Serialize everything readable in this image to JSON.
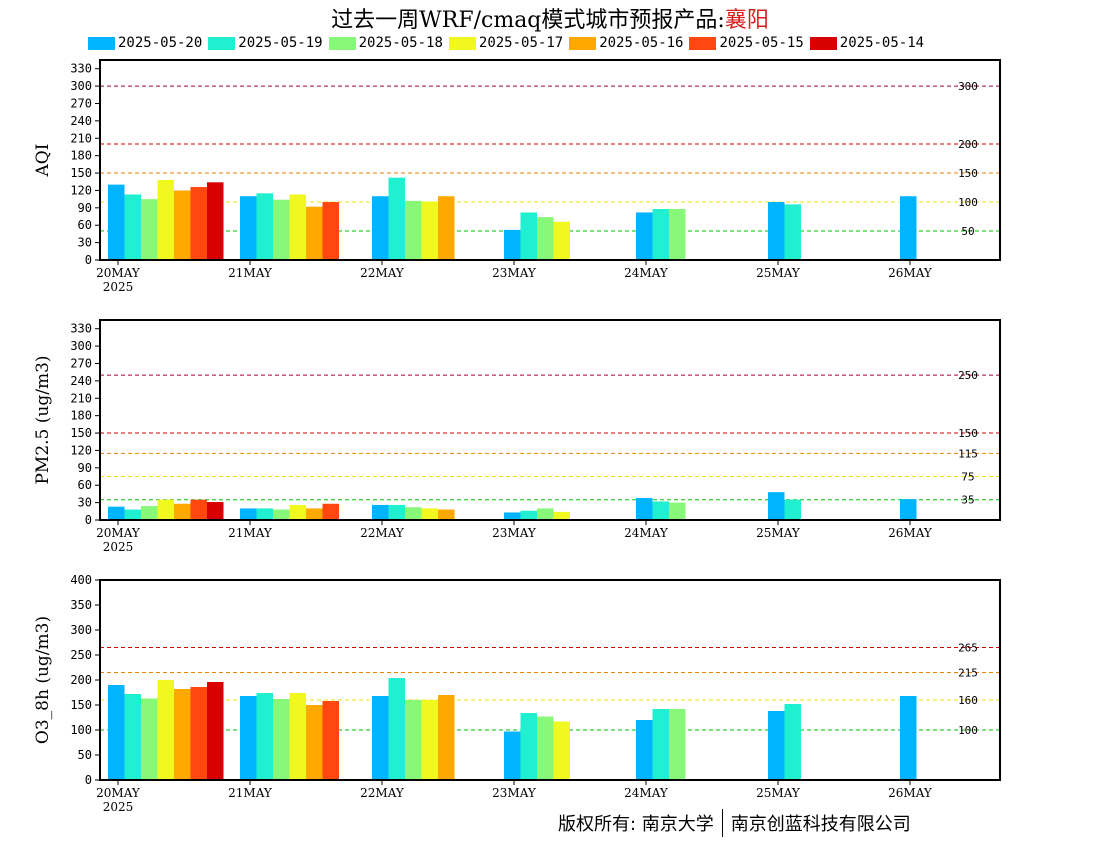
{
  "title": {
    "prefix": "过去一周WRF/cmaq模式城市预报产品:",
    "city": "襄阳",
    "city_color": "#d62020"
  },
  "legend": [
    {
      "label": "2025-05-20",
      "color": "#00b4ff"
    },
    {
      "label": "2025-05-19",
      "color": "#20f0d0"
    },
    {
      "label": "2025-05-18",
      "color": "#88f878"
    },
    {
      "label": "2025-05-17",
      "color": "#f0f820"
    },
    {
      "label": "2025-05-16",
      "color": "#ffa800"
    },
    {
      "label": "2025-05-15",
      "color": "#ff4810"
    },
    {
      "label": "2025-05-14",
      "color": "#d80000"
    }
  ],
  "chart_data": [
    {
      "type": "bar",
      "ylabel": "AQI",
      "ylim": [
        0,
        345
      ],
      "yticks": [
        0,
        30,
        60,
        90,
        120,
        150,
        180,
        210,
        240,
        270,
        300,
        330
      ],
      "categories": [
        "20MAY",
        "21MAY",
        "22MAY",
        "23MAY",
        "24MAY",
        "25MAY",
        "26MAY"
      ],
      "year_label": "2025",
      "thresholds": [
        {
          "value": 300,
          "label": "300",
          "color": "#a0003c"
        },
        {
          "value": 200,
          "label": "200",
          "color": "#d00000"
        },
        {
          "value": 150,
          "label": "150",
          "color": "#f08000"
        },
        {
          "value": 100,
          "label": "100",
          "color": "#f0e000"
        },
        {
          "value": 50,
          "label": "50",
          "color": "#00c000"
        }
      ],
      "series_values": [
        [
          130,
          110,
          110,
          52,
          82,
          100,
          110
        ],
        [
          113,
          115,
          142,
          82,
          88,
          96,
          null
        ],
        [
          105,
          104,
          102,
          74,
          88,
          null,
          null
        ],
        [
          138,
          113,
          101,
          66,
          null,
          null,
          null
        ],
        [
          120,
          92,
          110,
          null,
          null,
          null,
          null
        ],
        [
          126,
          100,
          null,
          null,
          null,
          null,
          null
        ],
        [
          134,
          null,
          null,
          null,
          null,
          null,
          null
        ]
      ]
    },
    {
      "type": "bar",
      "ylabel": "PM2.5 (ug/m3)",
      "ylim": [
        0,
        345
      ],
      "yticks": [
        0,
        30,
        60,
        90,
        120,
        150,
        180,
        210,
        240,
        270,
        300,
        330
      ],
      "categories": [
        "20MAY",
        "21MAY",
        "22MAY",
        "23MAY",
        "24MAY",
        "25MAY",
        "26MAY"
      ],
      "year_label": "2025",
      "thresholds": [
        {
          "value": 250,
          "label": "250",
          "color": "#a0003c"
        },
        {
          "value": 150,
          "label": "150",
          "color": "#d00000"
        },
        {
          "value": 115,
          "label": "115",
          "color": "#f08000"
        },
        {
          "value": 75,
          "label": "75",
          "color": "#f0e000"
        },
        {
          "value": 35,
          "label": "35",
          "color": "#00c000"
        }
      ],
      "series_values": [
        [
          23,
          20,
          26,
          13,
          38,
          48,
          36
        ],
        [
          18,
          20,
          26,
          16,
          32,
          35,
          null
        ],
        [
          24,
          18,
          22,
          20,
          30,
          null,
          null
        ],
        [
          35,
          26,
          20,
          14,
          null,
          null,
          null
        ],
        [
          28,
          20,
          18,
          null,
          null,
          null,
          null
        ],
        [
          35,
          28,
          null,
          null,
          null,
          null,
          null
        ],
        [
          31,
          null,
          null,
          null,
          null,
          null,
          null
        ]
      ]
    },
    {
      "type": "bar",
      "ylabel": "O3_8h (ug/m3)",
      "ylim": [
        0,
        400
      ],
      "yticks": [
        0,
        50,
        100,
        150,
        200,
        250,
        300,
        350,
        400
      ],
      "categories": [
        "20MAY",
        "21MAY",
        "22MAY",
        "23MAY",
        "24MAY",
        "25MAY",
        "26MAY"
      ],
      "year_label": "2025",
      "thresholds": [
        {
          "value": 265,
          "label": "265",
          "color": "#d00000"
        },
        {
          "value": 215,
          "label": "215",
          "color": "#f08000"
        },
        {
          "value": 160,
          "label": "160",
          "color": "#f0e000"
        },
        {
          "value": 100,
          "label": "100",
          "color": "#00c000"
        }
      ],
      "series_values": [
        [
          190,
          168,
          168,
          97,
          120,
          138,
          168
        ],
        [
          172,
          174,
          204,
          134,
          142,
          152,
          null
        ],
        [
          163,
          162,
          160,
          127,
          142,
          null,
          null
        ],
        [
          200,
          174,
          160,
          117,
          null,
          null,
          null
        ],
        [
          182,
          150,
          170,
          null,
          null,
          null,
          null
        ],
        [
          186,
          158,
          null,
          null,
          null,
          null,
          null
        ],
        [
          196,
          null,
          null,
          null,
          null,
          null,
          null
        ]
      ]
    }
  ],
  "footer": {
    "left": "版权所有: 南京大学",
    "right": "南京创蓝科技有限公司"
  }
}
